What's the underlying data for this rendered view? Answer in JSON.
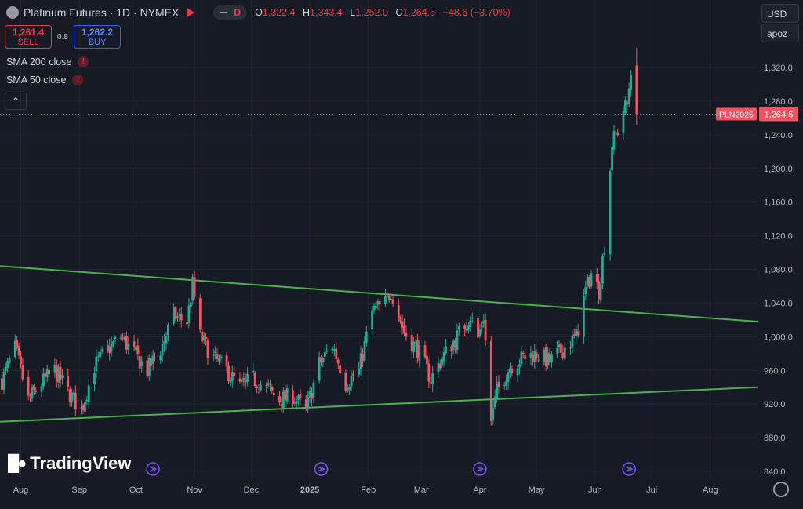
{
  "header": {
    "title": "Platinum Futures · 1D · NYMEX",
    "interval_badge": "D",
    "ohlc": {
      "o_label": "O",
      "o": "1,322.4",
      "h_label": "H",
      "h": "1,343.4",
      "l_label": "L",
      "l": "1,252.0",
      "c_label": "C",
      "c": "1,264.5",
      "change": "−48.6 (−3.70%)"
    }
  },
  "trade": {
    "sell_price": "1,261.4",
    "sell_label": "SELL",
    "spread": "0.8",
    "buy_price": "1,262.2",
    "buy_label": "BUY"
  },
  "indicators": [
    {
      "label": "SMA 200 close"
    },
    {
      "label": "SMA 50 close"
    }
  ],
  "right_controls": {
    "currency": "USD",
    "scale_mode": "apoz"
  },
  "price_label": {
    "symbol": "PLN2025",
    "value": "1,264.5",
    "price": 1264.5
  },
  "branding": {
    "name": "TradingView"
  },
  "colors": {
    "up": "#22ab94",
    "down": "#f7525f",
    "trendline": "#4caf50",
    "background": "#161a25",
    "grid": "#232632",
    "event_marker": "#7b4fff"
  },
  "chart_data": {
    "type": "candlestick",
    "ylim": [
      830,
      1350
    ],
    "y_ticks": [
      "840.0",
      "880.0",
      "920.0",
      "960.0",
      "1,000.0",
      "1,040.0",
      "1,080.0",
      "1,120.0",
      "1,160.0",
      "1,200.0",
      "1,240.0",
      "1,280.0",
      "1,320.0"
    ],
    "x_ticks": [
      "Aug",
      "Sep",
      "Oct",
      "Nov",
      "Dec",
      "2025",
      "Feb",
      "Mar",
      "Apr",
      "May",
      "Jun",
      "Jul",
      "Aug"
    ],
    "x_range": [
      "2024-07-21",
      "2025-08-26"
    ],
    "trendlines": [
      {
        "from": [
          "2024-07-21",
          1084
        ],
        "to": [
          "2025-08-26",
          1018
        ]
      },
      {
        "from": [
          "2024-07-21",
          899
        ],
        "to": [
          "2025-08-26",
          940
        ]
      }
    ],
    "event_markers": [
      "2024-10-10",
      "2025-01-07",
      "2025-04-01",
      "2025-06-19"
    ],
    "close_keypoints": [
      [
        "2024-07-22",
        948
      ],
      [
        "2024-07-29",
        986
      ],
      [
        "2024-08-05",
        925
      ],
      [
        "2024-08-12",
        945
      ],
      [
        "2024-08-19",
        960
      ],
      [
        "2024-08-26",
        935
      ],
      [
        "2024-09-02",
        912
      ],
      [
        "2024-09-09",
        965
      ],
      [
        "2024-09-16",
        985
      ],
      [
        "2024-09-23",
        1000
      ],
      [
        "2024-09-30",
        980
      ],
      [
        "2024-10-07",
        960
      ],
      [
        "2024-10-14",
        985
      ],
      [
        "2024-10-21",
        1025
      ],
      [
        "2024-10-28",
        1018
      ],
      [
        "2024-10-31",
        1062
      ],
      [
        "2024-11-04",
        1000
      ],
      [
        "2024-11-11",
        975
      ],
      [
        "2024-11-18",
        960
      ],
      [
        "2024-11-25",
        940
      ],
      [
        "2024-12-02",
        950
      ],
      [
        "2024-12-09",
        938
      ],
      [
        "2024-12-16",
        925
      ],
      [
        "2024-12-23",
        930
      ],
      [
        "2024-12-30",
        912
      ],
      [
        "2025-01-06",
        968
      ],
      [
        "2025-01-13",
        990
      ],
      [
        "2025-01-20",
        945
      ],
      [
        "2025-01-27",
        960
      ],
      [
        "2025-02-03",
        1030
      ],
      [
        "2025-02-10",
        1040
      ],
      [
        "2025-02-13",
        1055
      ],
      [
        "2025-02-20",
        1005
      ],
      [
        "2025-02-27",
        985
      ],
      [
        "2025-03-06",
        950
      ],
      [
        "2025-03-13",
        978
      ],
      [
        "2025-03-20",
        1000
      ],
      [
        "2025-03-27",
        1025
      ],
      [
        "2025-03-31",
        998
      ],
      [
        "2025-04-03",
        1025
      ],
      [
        "2025-04-07",
        900
      ],
      [
        "2025-04-10",
        935
      ],
      [
        "2025-04-17",
        965
      ],
      [
        "2025-04-24",
        975
      ],
      [
        "2025-05-01",
        980
      ],
      [
        "2025-05-08",
        970
      ],
      [
        "2025-05-15",
        985
      ],
      [
        "2025-05-22",
        1000
      ],
      [
        "2025-05-27",
        1055
      ],
      [
        "2025-05-30",
        1075
      ],
      [
        "2025-06-03",
        1055
      ],
      [
        "2025-06-06",
        1110
      ],
      [
        "2025-06-10",
        1230
      ],
      [
        "2025-06-13",
        1245
      ],
      [
        "2025-06-16",
        1270
      ],
      [
        "2025-06-18",
        1275
      ],
      [
        "2025-06-20",
        1320
      ],
      [
        "2025-06-23",
        1264.5
      ]
    ]
  }
}
